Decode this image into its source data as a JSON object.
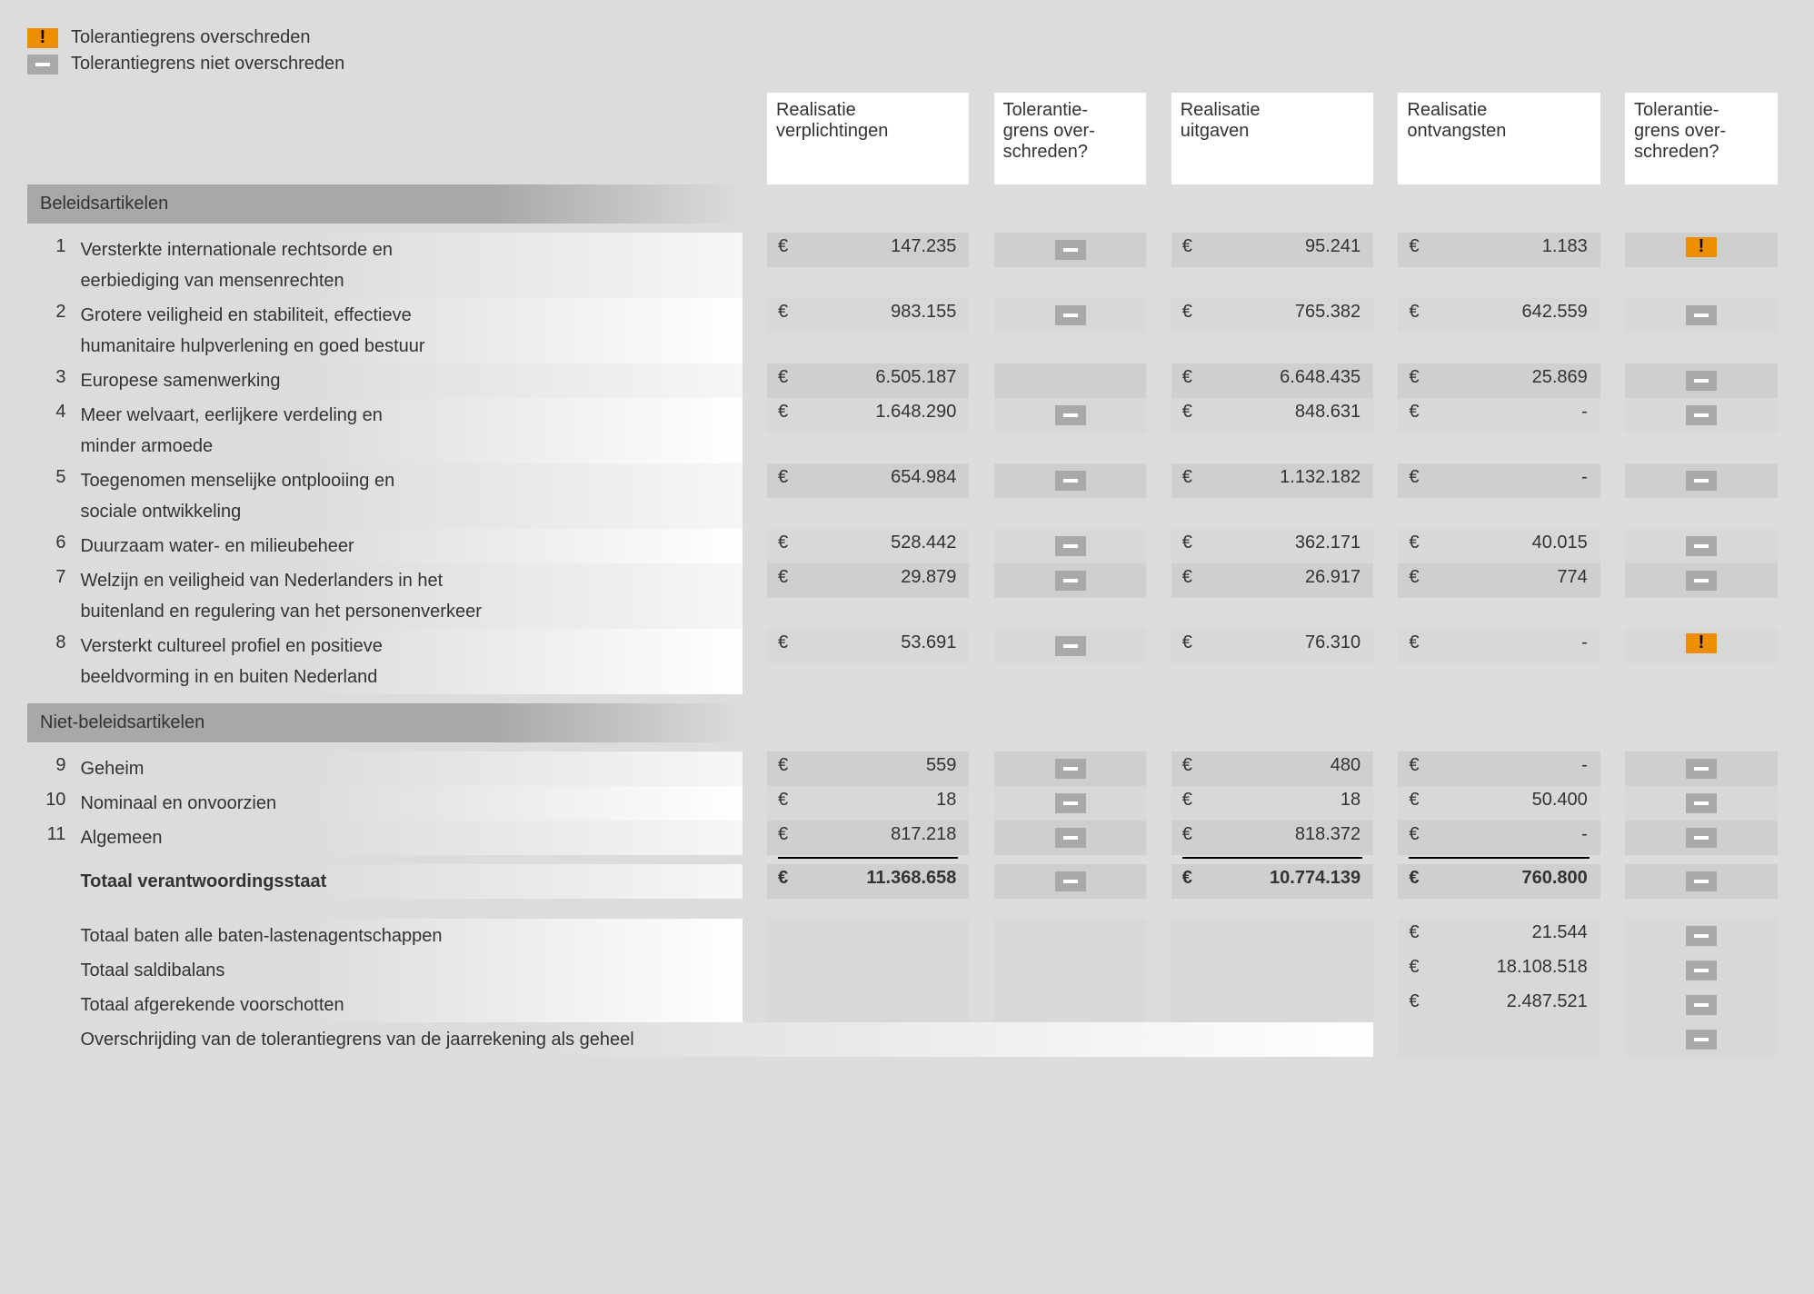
{
  "legend": {
    "exceeded": "Tolerantiegrens overschreden",
    "not_exceeded": "Tolerantiegrens niet overschreden"
  },
  "columns": {
    "realisatie_verplichtingen": "Realisatie verplichtingen",
    "tolerantie_1": "Tolerantie-grens over-schreden?",
    "realisatie_uitgaven": "Realisatie uitgaven",
    "realisatie_ontvangsten": "Realisatie ontvangsten",
    "tolerantie_2": "Tolerantie-grens over-schreden?"
  },
  "sections": {
    "beleidsartikelen": "Beleidsartikelen",
    "niet_beleidsartikelen": "Niet-beleidsartikelen"
  },
  "currency": "€",
  "rows": [
    {
      "n": "1",
      "name": "Versterkte internationale rechtsorde en",
      "name2": "eerbiediging van mensenrechten",
      "verpl": "147.235",
      "ind1": "not",
      "uitg": "95.241",
      "ontv": "1.183",
      "ind2": "yes"
    },
    {
      "n": "2",
      "name": "Grotere veiligheid en stabiliteit, effectieve",
      "name2": "humanitaire hulpverlening en goed bestuur",
      "verpl": "983.155",
      "ind1": "not",
      "uitg": "765.382",
      "ontv": "642.559",
      "ind2": "not"
    },
    {
      "n": "3",
      "name": "Europese samenwerking",
      "verpl": "6.505.187",
      "ind1": "",
      "uitg": "6.648.435",
      "ontv": "25.869",
      "ind2": "not"
    },
    {
      "n": "4",
      "name": "Meer welvaart, eerlijkere verdeling en",
      "name2": "minder armoede",
      "verpl": "1.648.290",
      "ind1": "not",
      "uitg": "848.631",
      "ontv": "-",
      "ind2": "not"
    },
    {
      "n": "5",
      "name": "Toegenomen menselijke ontplooiing en",
      "name2": "sociale ontwikkeling",
      "verpl": "654.984",
      "ind1": "not",
      "uitg": "1.132.182",
      "ontv": "-",
      "ind2": "not"
    },
    {
      "n": "6",
      "name": "Duurzaam water- en milieubeheer",
      "verpl": "528.442",
      "ind1": "not",
      "uitg": "362.171",
      "ontv": "40.015",
      "ind2": "not"
    },
    {
      "n": "7",
      "name": "Welzijn en veiligheid van Nederlanders in het",
      "name2": "buitenland en regulering van het personenverkeer",
      "verpl": "29.879",
      "ind1": "not",
      "uitg": "26.917",
      "ontv": "774",
      "ind2": "not"
    },
    {
      "n": "8",
      "name": "Versterkt cultureel profiel en positieve",
      "name2": "beeldvorming in en buiten Nederland",
      "verpl": "53.691",
      "ind1": "not",
      "uitg": "76.310",
      "ontv": "-",
      "ind2": "yes"
    }
  ],
  "rows2": [
    {
      "n": "9",
      "name": "Geheim",
      "verpl": "559",
      "ind1": "not",
      "uitg": "480",
      "ontv": "-",
      "ind2": "not"
    },
    {
      "n": "10",
      "name": "Nominaal en onvoorzien",
      "verpl": "18",
      "ind1": "not",
      "uitg": "18",
      "ontv": "50.400",
      "ind2": "not"
    },
    {
      "n": "11",
      "name": "Algemeen",
      "verpl": "817.218",
      "ind1": "not",
      "uitg": "818.372",
      "ontv": "-",
      "ind2": "not"
    }
  ],
  "total": {
    "label": "Totaal verantwoordingsstaat",
    "verpl": "11.368.658",
    "ind1": "not",
    "uitg": "10.774.139",
    "ontv": "760.800",
    "ind2": "not"
  },
  "footers": [
    {
      "label": "Totaal baten alle baten-lastenagentschappen",
      "ontv": "21.544",
      "ind2": "not"
    },
    {
      "label": "Totaal saldibalans",
      "ontv": "18.108.518",
      "ind2": "not"
    },
    {
      "label": "Totaal afgerekende voorschotten",
      "ontv": "2.487.521",
      "ind2": "not"
    },
    {
      "label": "Overschrijding van de tolerantiegrens van de jaarrekening als geheel",
      "ontv": "",
      "ind2": "not",
      "wide": true
    }
  ],
  "colors": {
    "exceeded_bg": "#ee8e00",
    "not_exceeded_bg": "#a9a9a9",
    "page_bg": "#dcdcdc",
    "header_bg": "#ffffff",
    "row_cell_bg": "#cfcfcf",
    "section_bg": "#a8a8a8"
  }
}
